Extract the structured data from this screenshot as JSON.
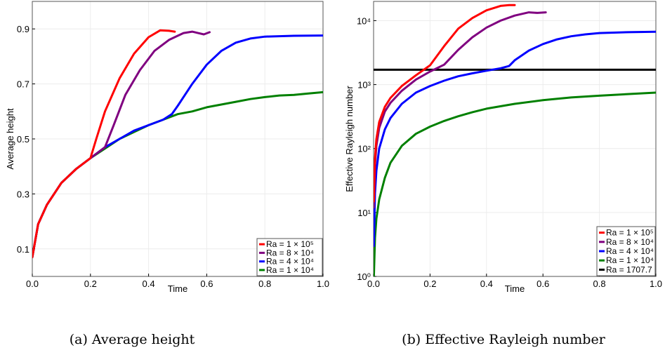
{
  "chart_data": [
    {
      "type": "line",
      "title": "",
      "xlabel": "Time",
      "ylabel": "Average height",
      "xlim": [
        0.0,
        1.0
      ],
      "ylim": [
        0.0,
        1.0
      ],
      "xticks": [
        "0.0",
        "0.2",
        "0.4",
        "0.6",
        "0.8",
        "1.0"
      ],
      "yticks": [
        "0.1",
        "0.3",
        "0.5",
        "0.7",
        "0.9"
      ],
      "ytick_values": [
        0.1,
        0.3,
        0.5,
        0.7,
        0.9
      ],
      "grid": true,
      "log_y": false,
      "legend_position": "bottom-right",
      "caption": "(a) Average height",
      "series": [
        {
          "name": "Ra = 1 × 10⁵",
          "color": "#ff0000",
          "x": [
            0.0,
            0.02,
            0.05,
            0.1,
            0.15,
            0.2,
            0.22,
            0.25,
            0.3,
            0.35,
            0.4,
            0.44,
            0.47,
            0.49
          ],
          "y": [
            0.07,
            0.19,
            0.26,
            0.34,
            0.39,
            0.43,
            0.5,
            0.6,
            0.72,
            0.81,
            0.87,
            0.895,
            0.893,
            0.89
          ]
        },
        {
          "name": "Ra = 8 × 10⁴",
          "color": "#800080",
          "x": [
            0.0,
            0.02,
            0.05,
            0.1,
            0.15,
            0.2,
            0.25,
            0.28,
            0.32,
            0.37,
            0.42,
            0.47,
            0.52,
            0.55,
            0.57,
            0.59,
            0.61
          ],
          "y": [
            0.07,
            0.19,
            0.26,
            0.34,
            0.39,
            0.43,
            0.47,
            0.55,
            0.66,
            0.75,
            0.82,
            0.86,
            0.885,
            0.89,
            0.885,
            0.88,
            0.888
          ]
        },
        {
          "name": "Ra = 4 × 10⁴",
          "color": "#0000ff",
          "x": [
            0.0,
            0.02,
            0.05,
            0.1,
            0.15,
            0.2,
            0.25,
            0.3,
            0.35,
            0.4,
            0.45,
            0.48,
            0.5,
            0.55,
            0.6,
            0.65,
            0.7,
            0.75,
            0.8,
            0.9,
            1.0
          ],
          "y": [
            0.07,
            0.19,
            0.26,
            0.34,
            0.39,
            0.43,
            0.47,
            0.5,
            0.53,
            0.55,
            0.57,
            0.59,
            0.62,
            0.7,
            0.77,
            0.82,
            0.85,
            0.865,
            0.872,
            0.875,
            0.876
          ]
        },
        {
          "name": "Ra = 1 × 10⁴",
          "color": "#008000",
          "x": [
            0.0,
            0.02,
            0.05,
            0.1,
            0.15,
            0.2,
            0.25,
            0.3,
            0.35,
            0.4,
            0.45,
            0.5,
            0.55,
            0.6,
            0.65,
            0.7,
            0.75,
            0.8,
            0.85,
            0.9,
            0.95,
            1.0
          ],
          "y": [
            0.07,
            0.19,
            0.26,
            0.34,
            0.39,
            0.43,
            0.465,
            0.5,
            0.525,
            0.55,
            0.57,
            0.59,
            0.6,
            0.615,
            0.625,
            0.635,
            0.645,
            0.652,
            0.658,
            0.66,
            0.665,
            0.67
          ]
        }
      ]
    },
    {
      "type": "line",
      "title": "",
      "xlabel": "Time",
      "ylabel": "Effective Rayleigh number",
      "xlim": [
        0.0,
        1.0
      ],
      "ylim": [
        1,
        20000
      ],
      "xticks": [
        "0.0",
        "0.2",
        "0.4",
        "0.6",
        "0.8",
        "1.0"
      ],
      "yticks": [
        "10⁰",
        "10¹",
        "10²",
        "10³",
        "10⁴"
      ],
      "ytick_values": [
        1,
        10,
        100,
        1000,
        10000
      ],
      "grid": true,
      "log_y": true,
      "legend_position": "bottom-right",
      "caption": "(b) Effective Rayleigh number",
      "series": [
        {
          "name": "Ra = 1 × 10⁵",
          "color": "#ff0000",
          "x": [
            0.001,
            0.005,
            0.01,
            0.02,
            0.04,
            0.06,
            0.1,
            0.15,
            0.2,
            0.25,
            0.3,
            0.35,
            0.4,
            0.45,
            0.48,
            0.5
          ],
          "y": [
            15,
            70,
            140,
            260,
            450,
            620,
            950,
            1400,
            2000,
            4000,
            7500,
            11000,
            14500,
            17000,
            17500,
            17500
          ]
        },
        {
          "name": "Ra = 8 × 10⁴",
          "color": "#800080",
          "x": [
            0.001,
            0.005,
            0.01,
            0.02,
            0.04,
            0.06,
            0.1,
            0.15,
            0.2,
            0.25,
            0.3,
            0.35,
            0.4,
            0.45,
            0.5,
            0.55,
            0.58,
            0.61
          ],
          "y": [
            12,
            55,
            110,
            210,
            380,
            520,
            800,
            1200,
            1600,
            2050,
            3500,
            5500,
            7800,
            10000,
            12000,
            13500,
            13200,
            13500
          ]
        },
        {
          "name": "Ra = 4 × 10⁴",
          "color": "#0000ff",
          "x": [
            0.001,
            0.005,
            0.01,
            0.02,
            0.04,
            0.06,
            0.1,
            0.15,
            0.2,
            0.25,
            0.3,
            0.35,
            0.4,
            0.45,
            0.48,
            0.5,
            0.55,
            0.6,
            0.65,
            0.7,
            0.75,
            0.8,
            0.9,
            1.0
          ],
          "y": [
            3,
            20,
            45,
            100,
            200,
            300,
            500,
            750,
            950,
            1150,
            1350,
            1500,
            1650,
            1800,
            1950,
            2400,
            3400,
            4300,
            5100,
            5700,
            6100,
            6400,
            6600,
            6700
          ]
        },
        {
          "name": "Ra = 1 × 10⁴",
          "color": "#008000",
          "x": [
            0.001,
            0.005,
            0.01,
            0.02,
            0.04,
            0.06,
            0.1,
            0.15,
            0.2,
            0.25,
            0.3,
            0.35,
            0.4,
            0.5,
            0.6,
            0.7,
            0.8,
            0.9,
            1.0
          ],
          "y": [
            1,
            4,
            8,
            16,
            35,
            60,
            110,
            170,
            220,
            270,
            320,
            370,
            420,
            500,
            570,
            630,
            670,
            710,
            750
          ]
        },
        {
          "name": "Ra = 1707.7",
          "color": "#000000",
          "x": [
            0.0,
            1.0
          ],
          "y": [
            1707.7,
            1707.7
          ]
        }
      ]
    }
  ]
}
